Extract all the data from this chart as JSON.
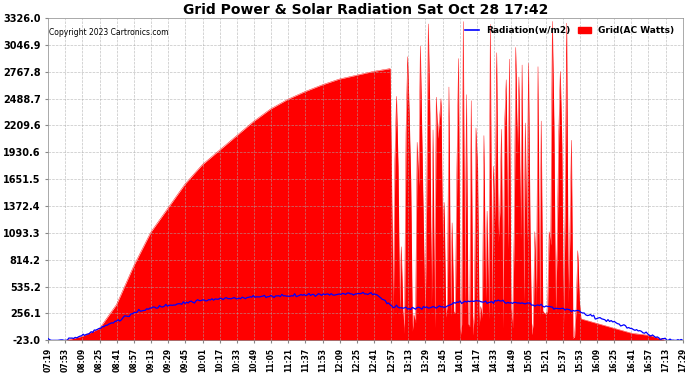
{
  "title": "Grid Power & Solar Radiation Sat Oct 28 17:42",
  "copyright": "Copyright 2023 Cartronics.com",
  "legend_radiation": "Radiation(w/m2)",
  "legend_grid": "Grid(AC Watts)",
  "yticks": [
    3326.0,
    3046.9,
    2767.8,
    2488.7,
    2209.6,
    1930.6,
    1651.5,
    1372.4,
    1093.3,
    814.2,
    535.2,
    256.1,
    -23.0
  ],
  "ymin": -23.0,
  "ymax": 3326.0,
  "background_color": "#ffffff",
  "plot_bg_color": "#ffffff",
  "grid_color": "#aaaaaa",
  "radiation_color": "#0000ff",
  "grid_fill_color": "#ff0000",
  "xtick_labels": [
    "07:19",
    "07:53",
    "08:09",
    "08:25",
    "08:41",
    "08:57",
    "09:13",
    "09:29",
    "09:45",
    "10:01",
    "10:17",
    "10:33",
    "10:49",
    "11:05",
    "11:21",
    "11:37",
    "11:53",
    "12:09",
    "12:25",
    "12:41",
    "12:57",
    "13:13",
    "13:29",
    "13:45",
    "14:01",
    "14:17",
    "14:33",
    "14:49",
    "15:05",
    "15:21",
    "15:37",
    "15:53",
    "16:09",
    "16:25",
    "16:41",
    "16:57",
    "17:13",
    "17:29"
  ],
  "grid_power": [
    -23,
    -23,
    50,
    200,
    500,
    900,
    1200,
    1500,
    1700,
    1900,
    2050,
    2200,
    2350,
    2450,
    2550,
    2620,
    2680,
    2720,
    2750,
    2780,
    3100,
    200,
    3200,
    100,
    2600,
    2650,
    3000,
    2500,
    2700,
    400,
    2400,
    100,
    200,
    150,
    100,
    50,
    -23,
    -23
  ],
  "radiation": [
    -23,
    -23,
    30,
    80,
    150,
    220,
    280,
    320,
    360,
    390,
    410,
    430,
    450,
    460,
    470,
    480,
    490,
    495,
    498,
    500,
    350,
    310,
    320,
    330,
    380,
    380,
    390,
    370,
    350,
    320,
    300,
    260,
    200,
    150,
    80,
    30,
    -23,
    -23
  ]
}
